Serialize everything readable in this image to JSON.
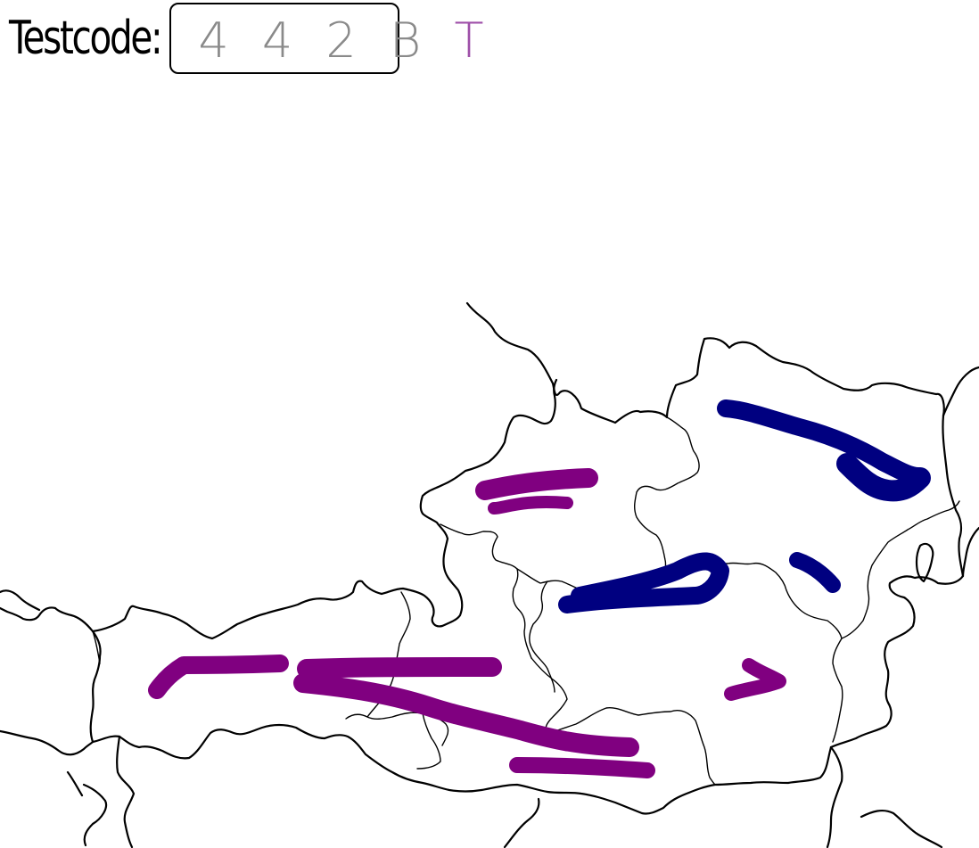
{
  "header": {
    "label": "Testcode:",
    "code_main": "4 4 2 B",
    "code_last": "T"
  },
  "colors": {
    "purple_marks": "#800080",
    "blue_marks": "#000080",
    "borders": "#000000"
  },
  "map": {
    "region": "Austria",
    "mark_count_purple": 5,
    "mark_count_blue": 3
  }
}
